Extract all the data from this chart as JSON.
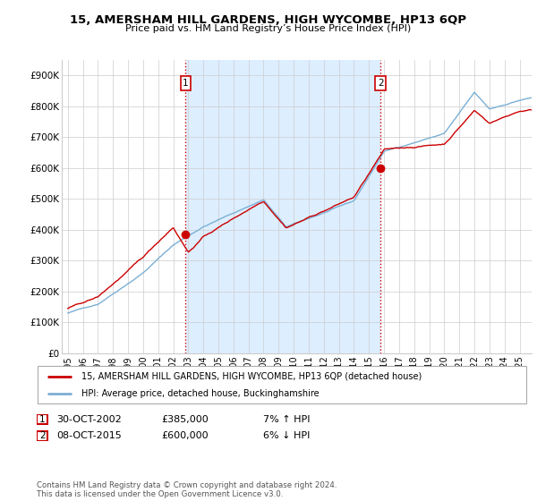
{
  "title": "15, AMERSHAM HILL GARDENS, HIGH WYCOMBE, HP13 6QP",
  "subtitle": "Price paid vs. HM Land Registry’s House Price Index (HPI)",
  "footer": "Contains HM Land Registry data © Crown copyright and database right 2024.\nThis data is licensed under the Open Government Licence v3.0.",
  "legend_line1": "15, AMERSHAM HILL GARDENS, HIGH WYCOMBE, HP13 6QP (detached house)",
  "legend_line2": "HPI: Average price, detached house, Buckinghamshire",
  "annotation1": {
    "num": "1",
    "date": "30-OCT-2002",
    "price": "£385,000",
    "hpi": "7% ↑ HPI"
  },
  "annotation2": {
    "num": "2",
    "date": "08-OCT-2015",
    "price": "£600,000",
    "hpi": "6% ↓ HPI"
  },
  "red_color": "#cc0000",
  "blue_color": "#7bafd4",
  "fill_color": "#ddeeff",
  "background_color": "#ffffff",
  "grid_color": "#cccccc",
  "ylim": [
    0,
    950000
  ],
  "yticks": [
    0,
    100000,
    200000,
    300000,
    400000,
    500000,
    600000,
    700000,
    800000,
    900000
  ],
  "ytick_labels": [
    "£0",
    "£100K",
    "£200K",
    "£300K",
    "£400K",
    "£500K",
    "£600K",
    "£700K",
    "£800K",
    "£900K"
  ],
  "sale1_x": 2002.83,
  "sale1_y": 385000,
  "sale2_x": 2015.77,
  "sale2_y": 600000,
  "xtick_years": [
    1995,
    1996,
    1997,
    1998,
    1999,
    2000,
    2001,
    2002,
    2003,
    2004,
    2005,
    2006,
    2007,
    2008,
    2009,
    2010,
    2011,
    2012,
    2013,
    2014,
    2015,
    2016,
    2017,
    2018,
    2019,
    2020,
    2021,
    2022,
    2023,
    2024,
    2025
  ]
}
